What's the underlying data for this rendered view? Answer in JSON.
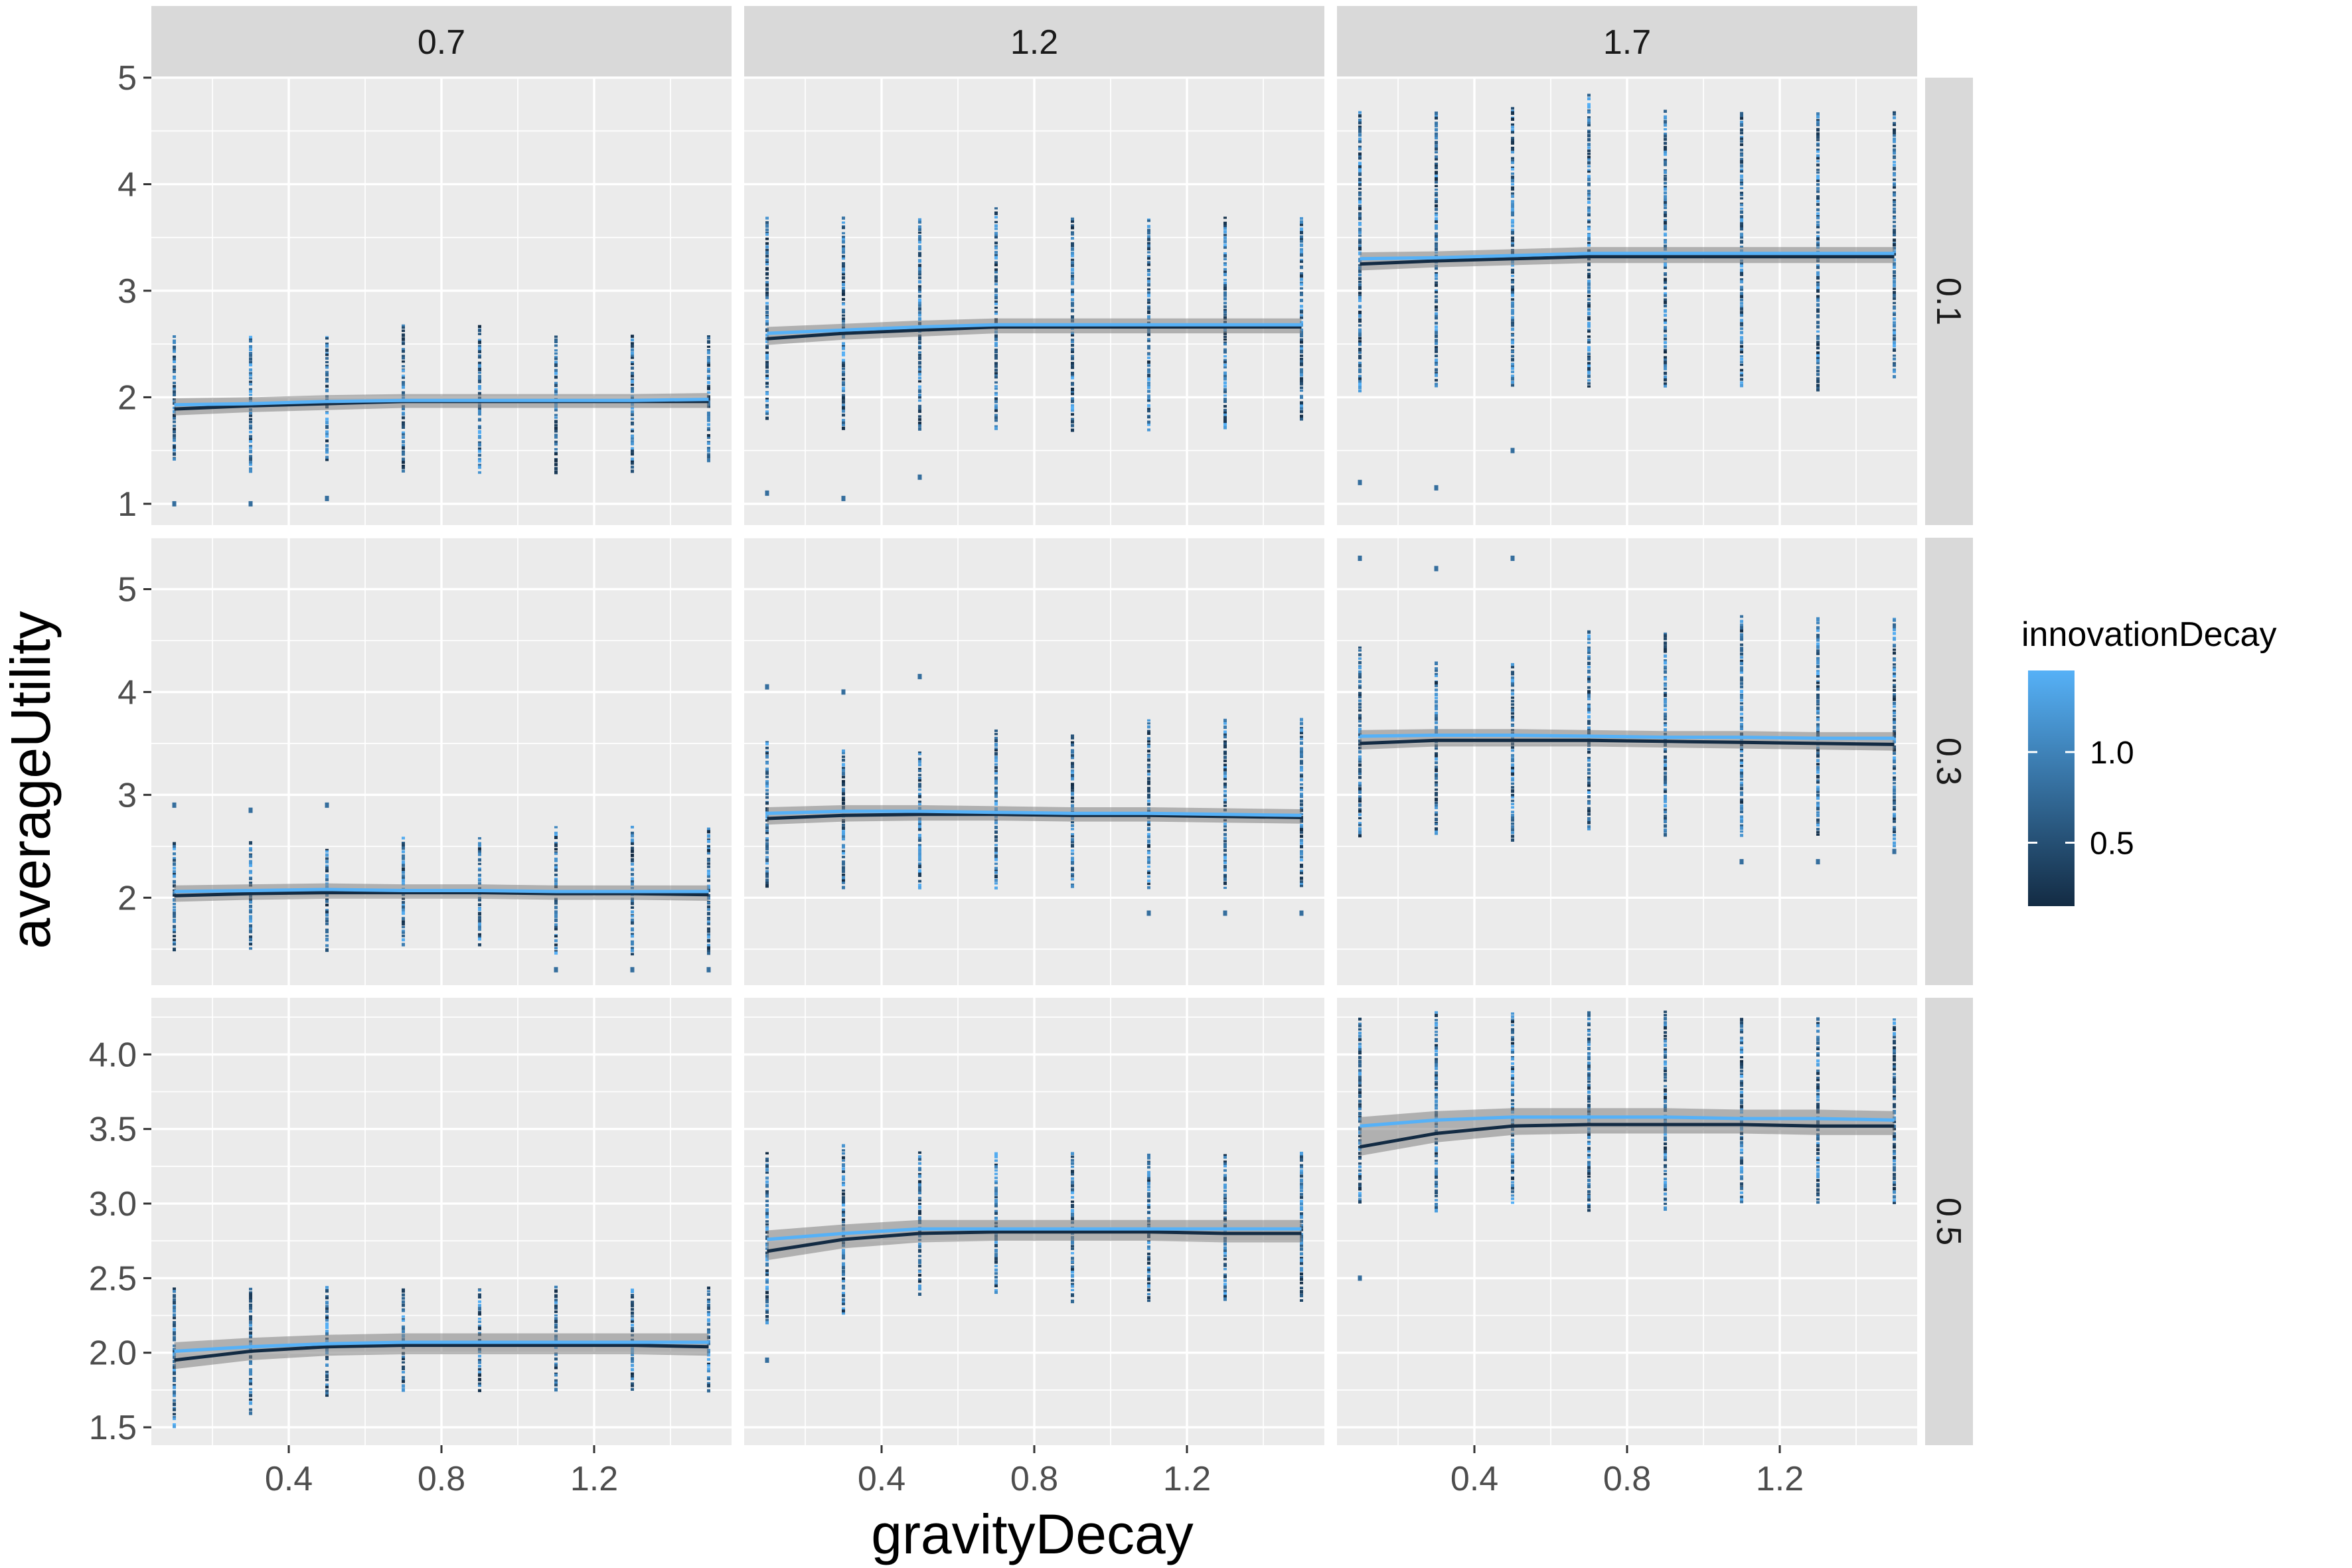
{
  "chart_data": {
    "type": "scatter",
    "facet_columns_label": "",
    "facet_rows_label": "",
    "col_facets": [
      "0.7",
      "1.2",
      "1.7"
    ],
    "row_facets": [
      "0.1",
      "0.3",
      "0.5"
    ],
    "xlabel": "gravityDecay",
    "ylabel": "averageUtility",
    "xlim": [
      0.04,
      1.56
    ],
    "x_ticks": [
      0.4,
      0.8,
      1.2
    ],
    "x_tick_labels": [
      "0.4",
      "0.8",
      "1.2"
    ],
    "x_points": [
      0.1,
      0.3,
      0.5,
      0.7,
      0.9,
      1.1,
      1.3,
      1.5
    ],
    "rows": [
      {
        "row": "0.1",
        "ylim": [
          0.8,
          5.0
        ],
        "y_ticks": [
          1,
          2,
          3,
          4,
          5
        ],
        "y_tick_labels": [
          "1",
          "2",
          "3",
          "4",
          "5"
        ],
        "panels": [
          {
            "col": "0.7",
            "point_ranges": [
              [
                1.4,
                2.6
              ],
              [
                1.3,
                2.6
              ],
              [
                1.4,
                2.6
              ],
              [
                1.3,
                2.7
              ],
              [
                1.3,
                2.7
              ],
              [
                1.3,
                2.6
              ],
              [
                1.3,
                2.6
              ],
              [
                1.4,
                2.6
              ]
            ],
            "outliers": [
              [
                0.1,
                1.0
              ],
              [
                0.3,
                1.0
              ],
              [
                0.5,
                1.05
              ]
            ],
            "smooth_high": [
              1.93,
              1.94,
              1.96,
              1.97,
              1.97,
              1.97,
              1.97,
              1.98
            ],
            "smooth_low": [
              1.89,
              1.92,
              1.94,
              1.96,
              1.96,
              1.96,
              1.96,
              1.96
            ]
          },
          {
            "col": "1.2",
            "point_ranges": [
              [
                1.8,
                3.7
              ],
              [
                1.7,
                3.7
              ],
              [
                1.7,
                3.7
              ],
              [
                1.7,
                3.8
              ],
              [
                1.7,
                3.7
              ],
              [
                1.7,
                3.7
              ],
              [
                1.7,
                3.7
              ],
              [
                1.8,
                3.7
              ]
            ],
            "outliers": [
              [
                0.1,
                1.1
              ],
              [
                0.3,
                1.05
              ],
              [
                0.5,
                1.25
              ]
            ],
            "smooth_high": [
              2.6,
              2.63,
              2.66,
              2.68,
              2.68,
              2.68,
              2.68,
              2.68
            ],
            "smooth_low": [
              2.55,
              2.6,
              2.63,
              2.66,
              2.66,
              2.66,
              2.66,
              2.66
            ]
          },
          {
            "col": "1.7",
            "point_ranges": [
              [
                2.05,
                4.7
              ],
              [
                2.1,
                4.7
              ],
              [
                2.1,
                4.75
              ],
              [
                2.1,
                4.85
              ],
              [
                2.1,
                4.7
              ],
              [
                2.1,
                4.7
              ],
              [
                2.05,
                4.7
              ],
              [
                2.2,
                4.7
              ]
            ],
            "outliers": [
              [
                0.1,
                1.2
              ],
              [
                0.3,
                1.15
              ],
              [
                0.5,
                1.5
              ]
            ],
            "smooth_high": [
              3.3,
              3.31,
              3.33,
              3.35,
              3.35,
              3.35,
              3.35,
              3.35
            ],
            "smooth_low": [
              3.25,
              3.28,
              3.3,
              3.32,
              3.32,
              3.32,
              3.32,
              3.32
            ]
          }
        ]
      },
      {
        "row": "0.3",
        "ylim": [
          1.15,
          5.5
        ],
        "y_ticks": [
          2,
          3,
          4,
          5
        ],
        "y_tick_labels": [
          "2",
          "3",
          "4",
          "5"
        ],
        "panels": [
          {
            "col": "0.7",
            "point_ranges": [
              [
                1.5,
                2.55
              ],
              [
                1.5,
                2.55
              ],
              [
                1.5,
                2.5
              ],
              [
                1.55,
                2.6
              ],
              [
                1.55,
                2.6
              ],
              [
                1.45,
                2.7
              ],
              [
                1.45,
                2.7
              ],
              [
                1.45,
                2.7
              ]
            ],
            "outliers": [
              [
                0.1,
                2.9
              ],
              [
                0.3,
                2.85
              ],
              [
                0.5,
                2.9
              ],
              [
                1.1,
                1.3
              ],
              [
                1.3,
                1.3
              ],
              [
                1.5,
                1.3
              ]
            ],
            "smooth_high": [
              2.06,
              2.07,
              2.08,
              2.07,
              2.07,
              2.06,
              2.06,
              2.06
            ],
            "smooth_low": [
              2.02,
              2.04,
              2.05,
              2.05,
              2.05,
              2.04,
              2.04,
              2.03
            ]
          },
          {
            "col": "1.2",
            "point_ranges": [
              [
                2.1,
                3.55
              ],
              [
                2.1,
                3.45
              ],
              [
                2.1,
                3.45
              ],
              [
                2.1,
                3.65
              ],
              [
                2.1,
                3.6
              ],
              [
                2.1,
                3.75
              ],
              [
                2.1,
                3.75
              ],
              [
                2.1,
                3.75
              ]
            ],
            "outliers": [
              [
                0.1,
                4.05
              ],
              [
                0.3,
                4.0
              ],
              [
                0.5,
                4.15
              ],
              [
                1.1,
                1.85
              ],
              [
                1.3,
                1.85
              ],
              [
                1.5,
                1.85
              ]
            ],
            "smooth_high": [
              2.82,
              2.84,
              2.84,
              2.83,
              2.82,
              2.82,
              2.81,
              2.8
            ],
            "smooth_low": [
              2.77,
              2.8,
              2.81,
              2.81,
              2.8,
              2.8,
              2.79,
              2.78
            ]
          },
          {
            "col": "1.7",
            "point_ranges": [
              [
                2.6,
                4.45
              ],
              [
                2.6,
                4.3
              ],
              [
                2.55,
                4.3
              ],
              [
                2.65,
                4.6
              ],
              [
                2.6,
                4.6
              ],
              [
                2.6,
                4.75
              ],
              [
                2.6,
                4.75
              ],
              [
                2.5,
                4.75
              ]
            ],
            "outliers": [
              [
                0.1,
                5.3
              ],
              [
                0.3,
                5.2
              ],
              [
                0.5,
                5.3
              ],
              [
                1.1,
                2.35
              ],
              [
                1.3,
                2.35
              ],
              [
                1.5,
                2.45
              ]
            ],
            "smooth_high": [
              3.57,
              3.58,
              3.58,
              3.57,
              3.56,
              3.56,
              3.55,
              3.55
            ],
            "smooth_low": [
              3.5,
              3.53,
              3.53,
              3.53,
              3.52,
              3.51,
              3.5,
              3.49
            ]
          }
        ]
      },
      {
        "row": "0.5",
        "ylim": [
          1.38,
          4.38
        ],
        "y_ticks": [
          1.5,
          2.0,
          2.5,
          3.0,
          3.5,
          4.0
        ],
        "y_tick_labels": [
          "1.5",
          "2.0",
          "2.5",
          "3.0",
          "3.5",
          "4.0"
        ],
        "panels": [
          {
            "col": "0.7",
            "point_ranges": [
              [
                1.5,
                2.45
              ],
              [
                1.6,
                2.45
              ],
              [
                1.7,
                2.45
              ],
              [
                1.75,
                2.45
              ],
              [
                1.75,
                2.45
              ],
              [
                1.75,
                2.45
              ],
              [
                1.75,
                2.45
              ],
              [
                1.75,
                2.45
              ]
            ],
            "outliers": [],
            "smooth_high": [
              2.01,
              2.04,
              2.06,
              2.07,
              2.07,
              2.07,
              2.07,
              2.07
            ],
            "smooth_low": [
              1.95,
              2.01,
              2.04,
              2.05,
              2.05,
              2.05,
              2.05,
              2.04
            ]
          },
          {
            "col": "1.2",
            "point_ranges": [
              [
                2.2,
                3.35
              ],
              [
                2.25,
                3.4
              ],
              [
                2.4,
                3.35
              ],
              [
                2.4,
                3.35
              ],
              [
                2.35,
                3.35
              ],
              [
                2.35,
                3.35
              ],
              [
                2.35,
                3.35
              ],
              [
                2.35,
                3.35
              ]
            ],
            "outliers": [
              [
                0.1,
                1.95
              ]
            ],
            "smooth_high": [
              2.76,
              2.8,
              2.83,
              2.83,
              2.83,
              2.83,
              2.83,
              2.83
            ],
            "smooth_low": [
              2.68,
              2.76,
              2.8,
              2.81,
              2.81,
              2.81,
              2.8,
              2.8
            ]
          },
          {
            "col": "1.7",
            "point_ranges": [
              [
                3.0,
                4.25
              ],
              [
                2.95,
                4.3
              ],
              [
                3.0,
                4.3
              ],
              [
                2.95,
                4.3
              ],
              [
                2.95,
                4.3
              ],
              [
                3.0,
                4.25
              ],
              [
                3.0,
                4.25
              ],
              [
                3.0,
                4.25
              ]
            ],
            "outliers": [
              [
                0.1,
                2.5
              ]
            ],
            "smooth_high": [
              3.52,
              3.56,
              3.58,
              3.58,
              3.58,
              3.57,
              3.57,
              3.56
            ],
            "smooth_low": [
              3.38,
              3.47,
              3.52,
              3.53,
              3.53,
              3.53,
              3.52,
              3.52
            ]
          }
        ]
      }
    ],
    "legend": {
      "title": "innovationDecay",
      "placement": "right",
      "scale_range": [
        0.15,
        1.45
      ],
      "ticks": [
        1.0,
        0.5
      ],
      "tick_labels": [
        "1.0",
        "0.5"
      ],
      "color_low": "#132B43",
      "color_high": "#56B1F7"
    },
    "colors": {
      "panel_background": "#ebebeb",
      "strip_background": "#d9d9d9",
      "ribbon": "#7f7f7f",
      "smooth_high": "#56B1F7",
      "smooth_low": "#132B43"
    }
  }
}
